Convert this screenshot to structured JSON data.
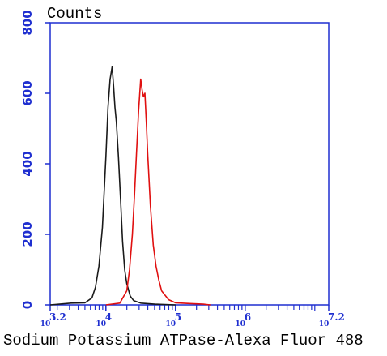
{
  "chart_data": {
    "type": "line",
    "title": "Counts",
    "xlabel": "Sodium Potassium ATPase-Alexa Fluor 488",
    "ylabel": "",
    "x_scale": "log",
    "xlim": [
      1585,
      15849000
    ],
    "ylim": [
      0,
      800
    ],
    "grid": false,
    "x_ticks": [
      {
        "label_base": "10",
        "label_exp": "3.2",
        "value": 1585
      },
      {
        "label_base": "10",
        "label_exp": "4",
        "value": 10000
      },
      {
        "label_base": "10",
        "label_exp": "5",
        "value": 100000
      },
      {
        "label_base": "10",
        "label_exp": "6",
        "value": 1000000
      },
      {
        "label_base": "10",
        "label_exp": "7.2",
        "value": 15849000
      }
    ],
    "y_ticks": [
      "0",
      "200",
      "400",
      "600",
      "800"
    ],
    "series": [
      {
        "color": "#1a1a1a",
        "x": [
          1585,
          3162,
          5012,
          6310,
          7079,
          7943,
          8913,
          10000,
          10715,
          11482,
          12303,
          12882,
          13490,
          14125,
          15136,
          16218,
          17378,
          18621,
          19953,
          22387,
          25119,
          31623,
          50119,
          100000
        ],
        "y": [
          0,
          5,
          6,
          20,
          50,
          110,
          220,
          420,
          560,
          640,
          675,
          620,
          560,
          520,
          420,
          300,
          180,
          100,
          60,
          25,
          12,
          5,
          2,
          0
        ]
      },
      {
        "color": "#e01010",
        "x": [
          10000,
          15849,
          19953,
          21878,
          23988,
          25704,
          27542,
          29512,
          31623,
          33113,
          34674,
          36308,
          38019,
          39811,
          43652,
          47863,
          52481,
          57544,
          63096,
          79433,
          100000,
          158489,
          251189,
          316228
        ],
        "y": [
          0,
          5,
          40,
          100,
          200,
          310,
          430,
          550,
          640,
          610,
          590,
          600,
          520,
          430,
          280,
          170,
          110,
          70,
          40,
          15,
          6,
          4,
          2,
          0
        ]
      }
    ]
  }
}
